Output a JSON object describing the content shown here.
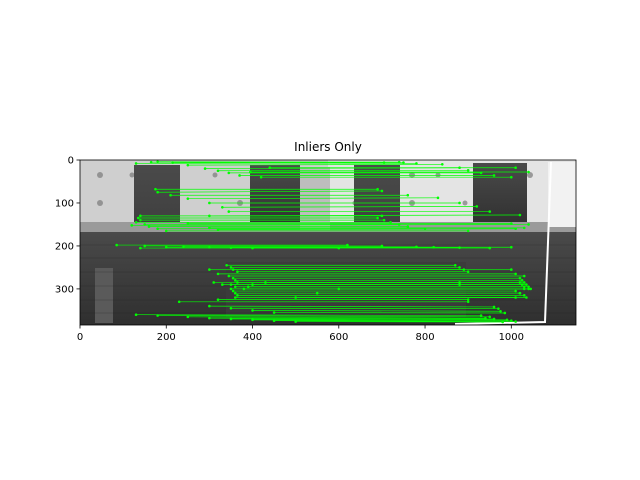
{
  "chart_data": {
    "type": "image",
    "title": "Inliers Only",
    "xlabel": "",
    "ylabel": "",
    "xlim": [
      0,
      1150
    ],
    "ylim": [
      384,
      0
    ],
    "xticks": [
      0,
      200,
      400,
      600,
      800,
      1000
    ],
    "yticks": [
      0,
      100,
      200,
      300
    ],
    "grid": false,
    "match_color": "#00ff00",
    "outline_color": "#ffffff",
    "matches": [
      [
        130,
        8,
        705,
        6
      ],
      [
        165,
        5,
        740,
        5
      ],
      [
        180,
        4,
        750,
        6
      ],
      [
        215,
        6,
        780,
        8
      ],
      [
        250,
        12,
        840,
        10
      ],
      [
        290,
        20,
        880,
        18
      ],
      [
        320,
        25,
        900,
        24
      ],
      [
        345,
        30,
        930,
        30
      ],
      [
        370,
        36,
        960,
        36
      ],
      [
        420,
        40,
        1000,
        40
      ],
      [
        440,
        18,
        1010,
        18
      ],
      [
        395,
        28,
        1040,
        28
      ],
      [
        175,
        68,
        690,
        68
      ],
      [
        180,
        75,
        700,
        72
      ],
      [
        210,
        82,
        760,
        82
      ],
      [
        250,
        90,
        830,
        88
      ],
      [
        300,
        100,
        880,
        100
      ],
      [
        330,
        110,
        920,
        108
      ],
      [
        345,
        120,
        950,
        120
      ],
      [
        300,
        130,
        1020,
        128
      ],
      [
        140,
        130,
        700,
        130
      ],
      [
        135,
        135,
        690,
        135
      ],
      [
        140,
        140,
        705,
        140
      ],
      [
        130,
        145,
        720,
        145
      ],
      [
        150,
        150,
        740,
        150
      ],
      [
        160,
        155,
        760,
        155
      ],
      [
        180,
        160,
        800,
        160
      ],
      [
        200,
        165,
        900,
        165
      ],
      [
        120,
        152,
        1040,
        150
      ],
      [
        250,
        148,
        1000,
        148
      ],
      [
        300,
        158,
        1030,
        158
      ],
      [
        320,
        162,
        1010,
        160
      ],
      [
        85,
        198,
        620,
        198
      ],
      [
        150,
        200,
        700,
        200
      ],
      [
        240,
        202,
        780,
        202
      ],
      [
        300,
        203,
        820,
        203
      ],
      [
        350,
        204,
        880,
        204
      ],
      [
        400,
        205,
        950,
        205
      ],
      [
        140,
        205,
        600,
        205
      ],
      [
        200,
        203,
        1000,
        203
      ],
      [
        340,
        245,
        870,
        245
      ],
      [
        350,
        250,
        880,
        250
      ],
      [
        355,
        255,
        890,
        255
      ],
      [
        365,
        260,
        900,
        260
      ],
      [
        300,
        255,
        1000,
        255
      ],
      [
        320,
        265,
        1010,
        265
      ],
      [
        345,
        270,
        1030,
        270
      ],
      [
        355,
        275,
        1020,
        275
      ],
      [
        360,
        280,
        1025,
        280
      ],
      [
        365,
        285,
        1030,
        285
      ],
      [
        350,
        290,
        1035,
        290
      ],
      [
        360,
        295,
        1030,
        295
      ],
      [
        310,
        285,
        880,
        285
      ],
      [
        330,
        290,
        880,
        290
      ],
      [
        350,
        300,
        1040,
        300
      ],
      [
        355,
        305,
        1010,
        305
      ],
      [
        360,
        310,
        1020,
        310
      ],
      [
        365,
        315,
        1030,
        315
      ],
      [
        360,
        320,
        1035,
        320
      ],
      [
        320,
        325,
        900,
        325
      ],
      [
        380,
        300,
        1045,
        300
      ],
      [
        390,
        295,
        1040,
        295
      ],
      [
        400,
        290,
        1025,
        290
      ],
      [
        430,
        285,
        1020,
        285
      ],
      [
        130,
        360,
        930,
        362
      ],
      [
        180,
        362,
        950,
        365
      ],
      [
        250,
        365,
        940,
        368
      ],
      [
        300,
        368,
        960,
        370
      ],
      [
        350,
        370,
        990,
        372
      ],
      [
        400,
        372,
        1000,
        374
      ],
      [
        450,
        374,
        1010,
        376
      ],
      [
        500,
        376,
        980,
        377
      ],
      [
        300,
        340,
        960,
        342
      ],
      [
        350,
        345,
        970,
        346
      ],
      [
        400,
        350,
        975,
        352
      ],
      [
        450,
        355,
        985,
        356
      ],
      [
        230,
        330,
        900,
        330
      ],
      [
        500,
        320,
        1010,
        320
      ],
      [
        550,
        310,
        1020,
        310
      ],
      [
        600,
        300,
        1030,
        300
      ]
    ]
  }
}
